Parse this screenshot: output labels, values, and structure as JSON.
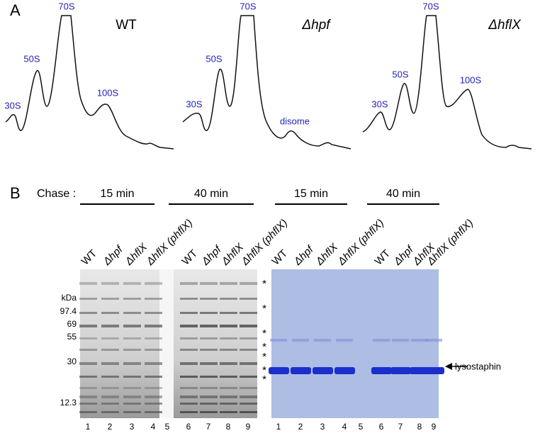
{
  "panel_a": {
    "label": "A",
    "profiles": [
      {
        "strain": "WT",
        "peaks": [
          "30S",
          "50S",
          "70S",
          "100S"
        ]
      },
      {
        "strain": "Δhpf",
        "peaks": [
          "30S",
          "50S",
          "70S",
          "disome"
        ]
      },
      {
        "strain": "ΔhflX",
        "peaks": [
          "30S",
          "50S",
          "70S",
          "100S"
        ]
      }
    ]
  },
  "panel_b": {
    "label": "B",
    "chase_label": "Chase :",
    "timepoints": [
      "15 min",
      "40 min",
      "15 min",
      "40 min"
    ],
    "lane_labels": [
      "WT",
      "Δhpf",
      "ΔhflX",
      "ΔhflX (phflX)"
    ],
    "kda_label": "kDa",
    "markers": [
      "97.4",
      "69",
      "55",
      "30",
      "12.3"
    ],
    "lane_numbers": [
      "1",
      "2",
      "3",
      "4",
      "5",
      "6",
      "7",
      "8",
      "9"
    ],
    "asterisk": "*",
    "arrow_label": "lysostaphin"
  }
}
